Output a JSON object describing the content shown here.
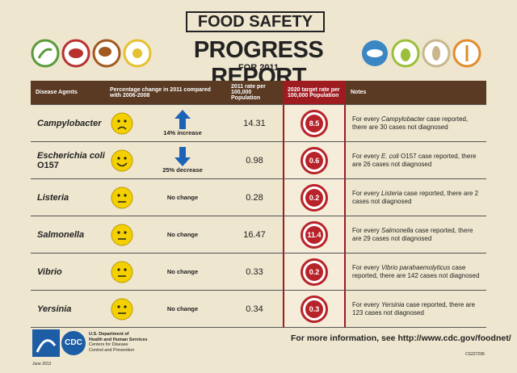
{
  "header": {
    "title": "FOOD SAFETY",
    "subtitle": "PROGRESS REPORT",
    "year": "FOR 2011"
  },
  "table": {
    "columns": [
      "Disease Agents",
      "Percentage change in 2011 compared with 2006-2008",
      "2011 rate per 100,000 Population",
      "2020 target rate per 100,000 Population",
      "Notes"
    ],
    "rows": [
      {
        "name": "Campylobacter",
        "face": "sad",
        "arrow": "up",
        "change": "14% increase",
        "rate": 14.31,
        "target": 8.5,
        "note": [
          "For every ",
          "Campylobacter",
          " case reported, there are 30 cases not diagnosed"
        ]
      },
      {
        "name": "Escherichia coli",
        "name_suffix": "O157",
        "face": "happy",
        "arrow": "down",
        "change": "25% decrease",
        "rate": 0.98,
        "target": 0.6,
        "note": [
          "For every ",
          "E. coli",
          " O157 case reported, there are 26 cases not diagnosed"
        ]
      },
      {
        "name": "Listeria",
        "face": "neutral",
        "change": "No change",
        "rate": 0.28,
        "target": 0.2,
        "note": [
          "For every ",
          "Listeria",
          " case reported, there are 2 cases not diagnosed"
        ]
      },
      {
        "name": "Salmonella",
        "face": "neutral",
        "change": "No change",
        "rate": 16.47,
        "target": 11.4,
        "note": [
          "For every ",
          "Salmonella",
          " case reported, there are 29 cases not diagnosed"
        ]
      },
      {
        "name": "Vibrio",
        "face": "neutral",
        "change": "No change",
        "rate": 0.33,
        "target": 0.2,
        "note": [
          "For every ",
          "Vibrio parahaemolyticus",
          " case reported, there are 142 cases not diagnosed"
        ]
      },
      {
        "name": "Yersinia",
        "face": "neutral",
        "change": "No change",
        "rate": 0.34,
        "target": 0.3,
        "note": [
          "For every ",
          "Yersinia",
          " case reported, there are 123 cases not diagnosed"
        ]
      }
    ]
  },
  "footer": {
    "logo": "CDC",
    "agency": [
      "U.S. Department of",
      "Health and Human Services",
      "Centers for Disease",
      "Control and Prevention"
    ],
    "more_info": "For more information, see http://www.cdc.gov/foodnet/",
    "date": "June 2012",
    "code": "CS227299"
  }
}
